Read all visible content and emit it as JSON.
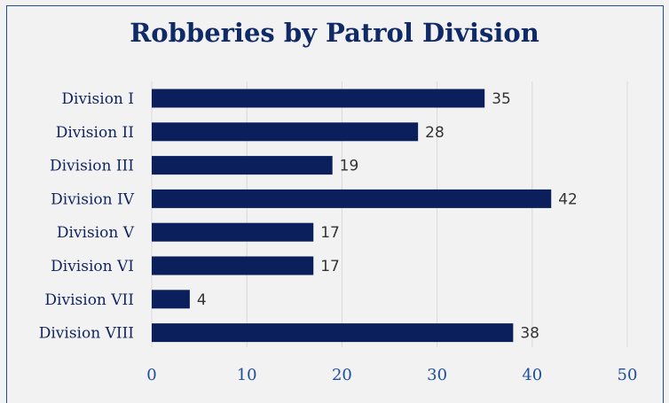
{
  "chart_data": {
    "type": "bar",
    "orientation": "horizontal",
    "title": "Robberies by Patrol Division",
    "xlabel": "",
    "ylabel": "",
    "categories": [
      "Division I",
      "Division II",
      "Division III",
      "Division IV",
      "Division V",
      "Division VI",
      "Division VII",
      "Division VIII"
    ],
    "values": [
      35,
      28,
      19,
      42,
      17,
      17,
      4,
      38
    ],
    "xlim": [
      0,
      50
    ],
    "xticks": [
      "0",
      "10",
      "20",
      "30",
      "40",
      "50"
    ],
    "grid": true,
    "legend": "none",
    "colors": {
      "bar": "#0a1f5c",
      "title": "#0f2a66",
      "axis_text": "#1f4e9a",
      "frame": "#1f4e9a",
      "background": "#f2f2f2"
    }
  }
}
